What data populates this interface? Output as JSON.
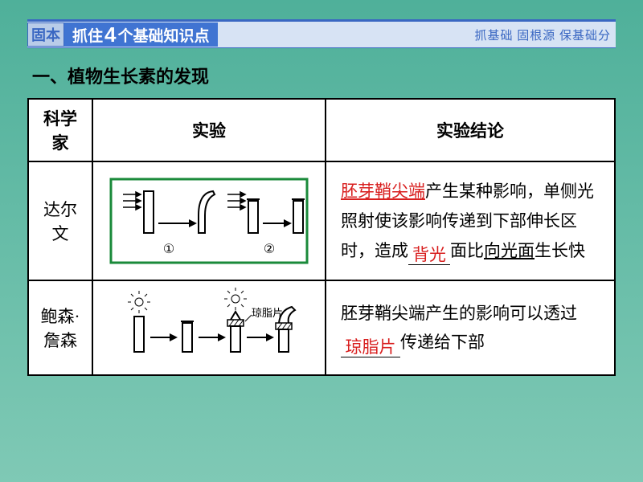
{
  "colors": {
    "slide_bg_top": "#4fb09a",
    "slide_bg_bottom": "#7fc9b5",
    "header_bg": "#d7e3f4",
    "header_border_top": "#3a67c2",
    "header_box_bg": "#b9cce8",
    "header_box_border": "#3a67c2",
    "header_left_bg": "#4074d2",
    "header_left_text": "#ffffff",
    "header_right_text": "#3a67c2",
    "body_text": "#000000",
    "highlight": "#d81e1e",
    "table_bg": "#ffffff",
    "diagram_border": "#1a8a3a"
  },
  "header": {
    "box_text": "固本",
    "left_pre": "抓住",
    "left_big": "4",
    "left_post": "个基础知识点",
    "right": "抓基础  固根源  保基础分"
  },
  "section_title": "一、植物生长素的发现",
  "table": {
    "head": {
      "c1": "科学家",
      "c2": "实验",
      "c3": "实验结论"
    },
    "rows": [
      {
        "scientist_l1": "达尔",
        "scientist_l2": "文",
        "diagram": {
          "type": "coleoptile-darwin",
          "border_color": "#1a8a3a",
          "labels": [
            "①",
            "②"
          ]
        },
        "conclusion": {
          "parts": [
            {
              "t": "胚芽鞘尖端",
              "cls": "ul red"
            },
            {
              "t": "产生某种影响，单侧光照射使该影响传递到下部伸长区时，造成",
              "cls": ""
            },
            {
              "t": "背光",
              "cls": "fill red"
            },
            {
              "t": "面比",
              "cls": ""
            },
            {
              "t": "向光面",
              "cls": "ul"
            },
            {
              "t": "生长快",
              "cls": ""
            }
          ]
        }
      },
      {
        "scientist_l1": "鲍森·",
        "scientist_l2": "詹森",
        "diagram": {
          "type": "coleoptile-jensen",
          "label": "琼脂片"
        },
        "conclusion": {
          "parts": [
            {
              "t": "胚芽鞘尖端产生的影响可以透过",
              "cls": ""
            },
            {
              "t": "琼脂片",
              "cls": "fill red wide"
            },
            {
              "t": "传递给下部",
              "cls": ""
            }
          ]
        }
      }
    ]
  }
}
